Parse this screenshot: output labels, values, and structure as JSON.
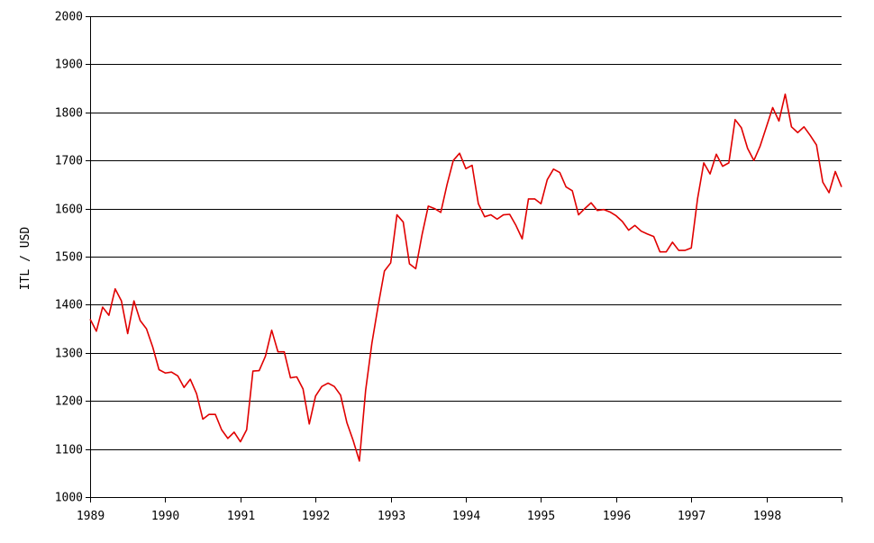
{
  "chart_data": {
    "type": "line",
    "title": "",
    "xlabel": "",
    "ylabel": "ITL / USD",
    "xlim": [
      1989,
      1999
    ],
    "ylim": [
      1000,
      2000
    ],
    "y_ticks": [
      1000,
      1100,
      1200,
      1300,
      1400,
      1500,
      1600,
      1700,
      1800,
      1900,
      2000
    ],
    "x_ticks": [
      "1989",
      "1990",
      "1991",
      "1992",
      "1993",
      "1994",
      "1995",
      "1996",
      "1997",
      "1998"
    ],
    "grid": "horizontal",
    "legend": "none",
    "series": [
      {
        "color": "#e00000",
        "x_start": 1989,
        "points_per_year": 12,
        "values": [
          1370,
          1345,
          1395,
          1378,
          1433,
          1408,
          1340,
          1408,
          1367,
          1350,
          1312,
          1265,
          1258,
          1260,
          1252,
          1228,
          1245,
          1215,
          1162,
          1172,
          1172,
          1140,
          1122,
          1135,
          1115,
          1140,
          1262,
          1263,
          1293,
          1347,
          1302,
          1302,
          1248,
          1250,
          1225,
          1152,
          1210,
          1230,
          1237,
          1230,
          1212,
          1155,
          1118,
          1075,
          1222,
          1320,
          1398,
          1470,
          1487,
          1587,
          1572,
          1485,
          1475,
          1545,
          1605,
          1600,
          1592,
          1650,
          1700,
          1715,
          1683,
          1690,
          1610,
          1583,
          1587,
          1578,
          1587,
          1588,
          1565,
          1537,
          1620,
          1620,
          1610,
          1660,
          1682,
          1675,
          1645,
          1637,
          1587,
          1600,
          1612,
          1596,
          1598,
          1593,
          1585,
          1573,
          1555,
          1565,
          1553,
          1547,
          1542,
          1510,
          1510,
          1530,
          1513,
          1513,
          1518,
          1620,
          1695,
          1672,
          1713,
          1688,
          1695,
          1785,
          1768,
          1725,
          1700,
          1730,
          1770,
          1810,
          1782,
          1838,
          1770,
          1758,
          1770,
          1752,
          1732,
          1655,
          1633,
          1677,
          1645
        ]
      }
    ]
  }
}
